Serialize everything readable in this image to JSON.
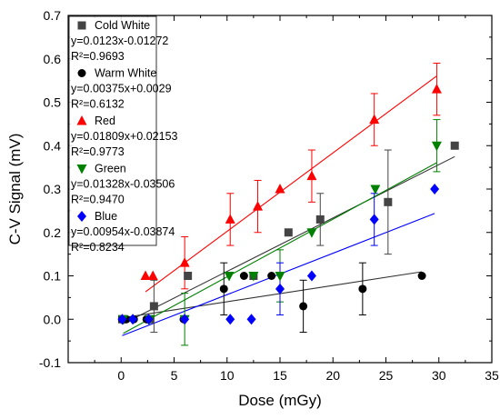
{
  "chart_data": {
    "type": "scatter",
    "xlabel": "Dose (mGy)",
    "ylabel": "C-V Signal (mV)",
    "xlim": [
      -5,
      35
    ],
    "ylim": [
      -0.1,
      0.7
    ],
    "xticks": [
      "0",
      "5",
      "10",
      "15",
      "20",
      "25",
      "30",
      "35"
    ],
    "yticks": [
      "-0.1",
      "0.0",
      "0.1",
      "0.2",
      "0.3",
      "0.4",
      "0.5",
      "0.6",
      "0.7"
    ],
    "xtick_values": [
      0,
      5,
      10,
      15,
      20,
      25,
      30,
      35
    ],
    "ytick_values": [
      -0.1,
      0.0,
      0.1,
      0.2,
      0.3,
      0.4,
      0.5,
      0.6,
      0.7
    ],
    "legend_position": "top-left",
    "grid": false,
    "series": [
      {
        "name": "Cold White",
        "marker": "square",
        "color": "#444444",
        "fit_color": "#333333",
        "equation": "y=0.0123x-0.01272",
        "r2": "R²=0.9693",
        "slope": 0.0123,
        "intercept": -0.01272,
        "points": [
          {
            "x": 0.1,
            "y": 0.0
          },
          {
            "x": 2.7,
            "y": 0.0
          },
          {
            "x": 3.1,
            "y": 0.03,
            "err": 0.06
          },
          {
            "x": 6.3,
            "y": 0.1
          },
          {
            "x": 12.5,
            "y": 0.1
          },
          {
            "x": 15.8,
            "y": 0.2
          },
          {
            "x": 18.8,
            "y": 0.23,
            "err": 0.06
          },
          {
            "x": 25.2,
            "y": 0.27,
            "err": 0.12
          },
          {
            "x": 31.5,
            "y": 0.4
          }
        ]
      },
      {
        "name": "Warm White",
        "marker": "circle",
        "color": "#000000",
        "fit_color": "#333333",
        "equation": "y=0.00375x+0.0029",
        "r2": "R²=0.6132",
        "slope": 0.00375,
        "intercept": 0.0029,
        "points": [
          {
            "x": 0.1,
            "y": 0.0
          },
          {
            "x": 0.5,
            "y": 0.0
          },
          {
            "x": 1.2,
            "y": 0.0
          },
          {
            "x": 2.4,
            "y": 0.0
          },
          {
            "x": 5.9,
            "y": 0.0
          },
          {
            "x": 9.7,
            "y": 0.07,
            "err": 0.06
          },
          {
            "x": 11.6,
            "y": 0.1
          },
          {
            "x": 14.2,
            "y": 0.1
          },
          {
            "x": 17.2,
            "y": 0.03,
            "err": 0.06
          },
          {
            "x": 22.8,
            "y": 0.07,
            "err": 0.06
          },
          {
            "x": 28.4,
            "y": 0.1
          }
        ]
      },
      {
        "name": "Red",
        "marker": "triangle-up",
        "color": "#ff0000",
        "fit_color": "#ff0000",
        "equation": "y=0.01809x+0.02153",
        "r2": "R²=0.9773",
        "slope": 0.01809,
        "intercept": 0.02153,
        "points": [
          {
            "x": 2.3,
            "y": 0.1
          },
          {
            "x": 3.0,
            "y": 0.1
          },
          {
            "x": 6.0,
            "y": 0.13,
            "err": 0.06
          },
          {
            "x": 10.3,
            "y": 0.23,
            "err": 0.06
          },
          {
            "x": 12.9,
            "y": 0.26,
            "err": 0.06
          },
          {
            "x": 15.0,
            "y": 0.3
          },
          {
            "x": 18.0,
            "y": 0.33,
            "err": 0.06
          },
          {
            "x": 23.9,
            "y": 0.46,
            "err": 0.06
          },
          {
            "x": 29.8,
            "y": 0.53,
            "err": 0.06
          }
        ]
      },
      {
        "name": "Green",
        "marker": "triangle-down",
        "color": "#008000",
        "fit_color": "#008000",
        "equation": "y=0.01328x-0.03506",
        "r2": "R²=0.9470",
        "slope": 0.01328,
        "intercept": -0.03506,
        "points": [
          {
            "x": 0.2,
            "y": 0.0
          },
          {
            "x": 2.7,
            "y": 0.0
          },
          {
            "x": 6.0,
            "y": 0.0,
            "err": 0.06
          },
          {
            "x": 10.2,
            "y": 0.1
          },
          {
            "x": 12.5,
            "y": 0.1
          },
          {
            "x": 15.0,
            "y": 0.1,
            "err": 0.06
          },
          {
            "x": 18.0,
            "y": 0.2
          },
          {
            "x": 24.0,
            "y": 0.3
          },
          {
            "x": 29.8,
            "y": 0.4,
            "err": 0.06
          }
        ]
      },
      {
        "name": "Blue",
        "marker": "diamond",
        "color": "#0000ff",
        "fit_color": "#0000ff",
        "equation": "y=0.00954x-0.03874",
        "r2": "R²=0.8234",
        "slope": 0.00954,
        "intercept": -0.03874,
        "points": [
          {
            "x": 0.1,
            "y": 0.0
          },
          {
            "x": 1.1,
            "y": 0.0
          },
          {
            "x": 2.6,
            "y": 0.0
          },
          {
            "x": 6.0,
            "y": 0.0
          },
          {
            "x": 10.3,
            "y": 0.0
          },
          {
            "x": 12.3,
            "y": 0.0
          },
          {
            "x": 15.0,
            "y": 0.07,
            "err": 0.06
          },
          {
            "x": 18.0,
            "y": 0.1
          },
          {
            "x": 23.9,
            "y": 0.23,
            "err": 0.06
          },
          {
            "x": 29.6,
            "y": 0.3
          }
        ]
      }
    ]
  }
}
